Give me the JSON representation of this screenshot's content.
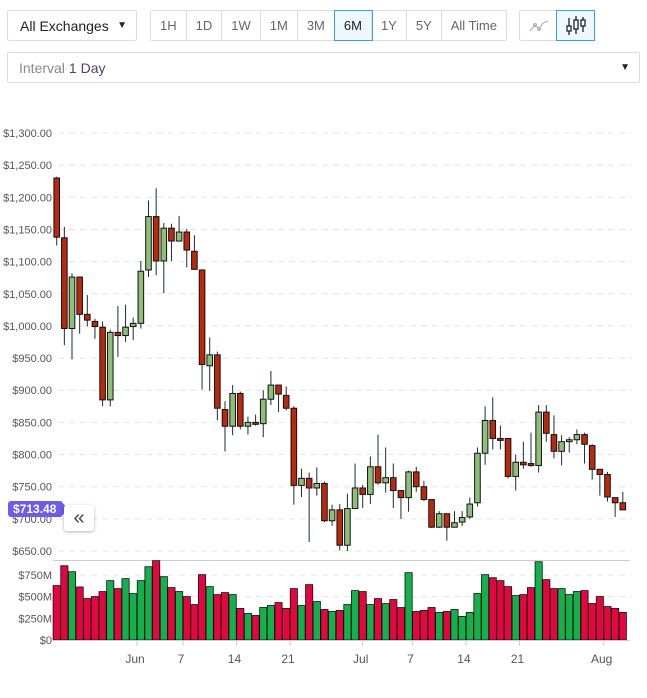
{
  "toolbar": {
    "exchange": "All Exchanges",
    "ranges": [
      {
        "label": "1H"
      },
      {
        "label": "1D"
      },
      {
        "label": "1W"
      },
      {
        "label": "1M"
      },
      {
        "label": "3M"
      },
      {
        "label": "6M",
        "active": true
      },
      {
        "label": "1Y"
      },
      {
        "label": "5Y"
      },
      {
        "label": "All Time"
      }
    ],
    "chart_types": [
      {
        "icon": "line-chart-icon",
        "active": false
      },
      {
        "icon": "candlestick-chart-icon",
        "active": true
      }
    ],
    "interval_label": "Interval",
    "interval_value": "1 Day"
  },
  "last_price_badge": "$713.48",
  "collapse_icon": "double-chevron-left-icon",
  "colors": {
    "up": "#8dbf78",
    "down": "#b8290d",
    "vol_up": "#14b04c",
    "vol_down": "#e3063f",
    "badge": "#6c5ce7",
    "accent": "#3a9ee8"
  },
  "chart_data": {
    "type": "candlestick",
    "grid": true,
    "price_axis": {
      "ylim": [
        650,
        1300
      ],
      "ticks": [
        {
          "v": 1300,
          "label": "$1,300.00"
        },
        {
          "v": 1250,
          "label": "$1,250.00"
        },
        {
          "v": 1200,
          "label": "$1,200.00"
        },
        {
          "v": 1150,
          "label": "$1,150.00"
        },
        {
          "v": 1100,
          "label": "$1,100.00"
        },
        {
          "v": 1050,
          "label": "$1,050.00"
        },
        {
          "v": 1000,
          "label": "$1,000.00"
        },
        {
          "v": 950,
          "label": "$950.00"
        },
        {
          "v": 900,
          "label": "$900.00"
        },
        {
          "v": 850,
          "label": "$850.00"
        },
        {
          "v": 800,
          "label": "$800.00"
        },
        {
          "v": 750,
          "label": "$750.00"
        },
        {
          "v": 700,
          "label": "$700.00"
        },
        {
          "v": 650,
          "label": "$650.00"
        }
      ]
    },
    "volume_axis": {
      "ylim": [
        0,
        900
      ],
      "ticks": [
        {
          "v": 0,
          "label": "$0"
        },
        {
          "v": 250,
          "label": "$250M"
        },
        {
          "v": 500,
          "label": "$500M"
        },
        {
          "v": 750,
          "label": "$750M"
        }
      ]
    },
    "x_ticks": [
      {
        "label": "Jun",
        "index": 10.5
      },
      {
        "label": "7",
        "index": 16.5
      },
      {
        "label": "14",
        "index": 23.5
      },
      {
        "label": "21",
        "index": 30.5
      },
      {
        "label": "Jul",
        "index": 40
      },
      {
        "label": "7",
        "index": 46.5
      },
      {
        "label": "14",
        "index": 53.5
      },
      {
        "label": "21",
        "index": 60.5
      },
      {
        "label": "Aug",
        "index": 71.5
      }
    ],
    "ohlc": [
      [
        1230,
        1232,
        1125,
        1138
      ],
      [
        1137,
        1154,
        970,
        996
      ],
      [
        996,
        1082,
        948,
        1076
      ],
      [
        1076,
        1076,
        988,
        1018
      ],
      [
        1018,
        1048,
        999,
        1009
      ],
      [
        1007,
        1011,
        980,
        999
      ],
      [
        998,
        1007,
        875,
        885
      ],
      [
        885,
        994,
        875,
        990
      ],
      [
        990,
        1031,
        952,
        985
      ],
      [
        985,
        1033,
        975,
        998
      ],
      [
        999,
        1013,
        978,
        1004
      ],
      [
        1004,
        1101,
        996,
        1085
      ],
      [
        1087,
        1195,
        1076,
        1170
      ],
      [
        1170,
        1214,
        1079,
        1101
      ],
      [
        1101,
        1160,
        1051,
        1152
      ],
      [
        1152,
        1159,
        1101,
        1132
      ],
      [
        1132,
        1171,
        1131,
        1146
      ],
      [
        1146,
        1151,
        1091,
        1118
      ],
      [
        1116,
        1141,
        1087,
        1088
      ],
      [
        1087,
        1088,
        901,
        940
      ],
      [
        938,
        982,
        899,
        955
      ],
      [
        955,
        960,
        853,
        872
      ],
      [
        870,
        883,
        805,
        844
      ],
      [
        844,
        908,
        830,
        895
      ],
      [
        895,
        898,
        839,
        844
      ],
      [
        844,
        859,
        831,
        850
      ],
      [
        850,
        862,
        845,
        847
      ],
      [
        848,
        900,
        827,
        886
      ],
      [
        886,
        930,
        877,
        908
      ],
      [
        908,
        908,
        866,
        894
      ],
      [
        892,
        906,
        869,
        872
      ],
      [
        872,
        875,
        722,
        752
      ],
      [
        752,
        778,
        734,
        763
      ],
      [
        763,
        772,
        664,
        748
      ],
      [
        748,
        780,
        736,
        755
      ],
      [
        755,
        758,
        695,
        697
      ],
      [
        697,
        722,
        689,
        714
      ],
      [
        714,
        723,
        651,
        659
      ],
      [
        659,
        739,
        650,
        716
      ],
      [
        716,
        786,
        716,
        748
      ],
      [
        748,
        753,
        717,
        738
      ],
      [
        738,
        797,
        723,
        781
      ],
      [
        781,
        831,
        753,
        756
      ],
      [
        756,
        811,
        741,
        764
      ],
      [
        764,
        786,
        717,
        744
      ],
      [
        744,
        744,
        700,
        733
      ],
      [
        733,
        775,
        711,
        773
      ],
      [
        773,
        781,
        742,
        750
      ],
      [
        750,
        759,
        728,
        730
      ],
      [
        730,
        730,
        686,
        687
      ],
      [
        687,
        712,
        686,
        708
      ],
      [
        708,
        708,
        666,
        687
      ],
      [
        687,
        712,
        689,
        694
      ],
      [
        695,
        712,
        689,
        702
      ],
      [
        703,
        733,
        700,
        723
      ],
      [
        725,
        811,
        719,
        802
      ],
      [
        802,
        875,
        784,
        853
      ],
      [
        853,
        889,
        808,
        825
      ],
      [
        825,
        845,
        808,
        822
      ],
      [
        825,
        825,
        763,
        766
      ],
      [
        766,
        800,
        744,
        788
      ],
      [
        788,
        820,
        778,
        784
      ],
      [
        786,
        834,
        781,
        783
      ],
      [
        783,
        877,
        772,
        866
      ],
      [
        866,
        877,
        820,
        833
      ],
      [
        831,
        861,
        794,
        805
      ],
      [
        805,
        830,
        783,
        820
      ],
      [
        820,
        827,
        803,
        823
      ],
      [
        823,
        839,
        816,
        831
      ],
      [
        831,
        834,
        786,
        816
      ],
      [
        814,
        816,
        761,
        777
      ],
      [
        777,
        778,
        736,
        769
      ],
      [
        769,
        773,
        727,
        734
      ],
      [
        733,
        733,
        703,
        725
      ],
      [
        725,
        742,
        714,
        714
      ]
    ],
    "volume": [
      628,
      857,
      788,
      612,
      478,
      501,
      559,
      685,
      593,
      708,
      536,
      685,
      846,
      915,
      731,
      605,
      559,
      501,
      409,
      754,
      616,
      524,
      547,
      524,
      364,
      306,
      283,
      375,
      398,
      432,
      364,
      593,
      398,
      639,
      444,
      352,
      329,
      341,
      409,
      570,
      559,
      409,
      478,
      421,
      467,
      375,
      777,
      329,
      341,
      375,
      318,
      329,
      352,
      272,
      318,
      536,
      754,
      719,
      685,
      616,
      513,
      524,
      605,
      903,
      697,
      593,
      593,
      524,
      559,
      570,
      421,
      501,
      386,
      364,
      318
    ]
  }
}
